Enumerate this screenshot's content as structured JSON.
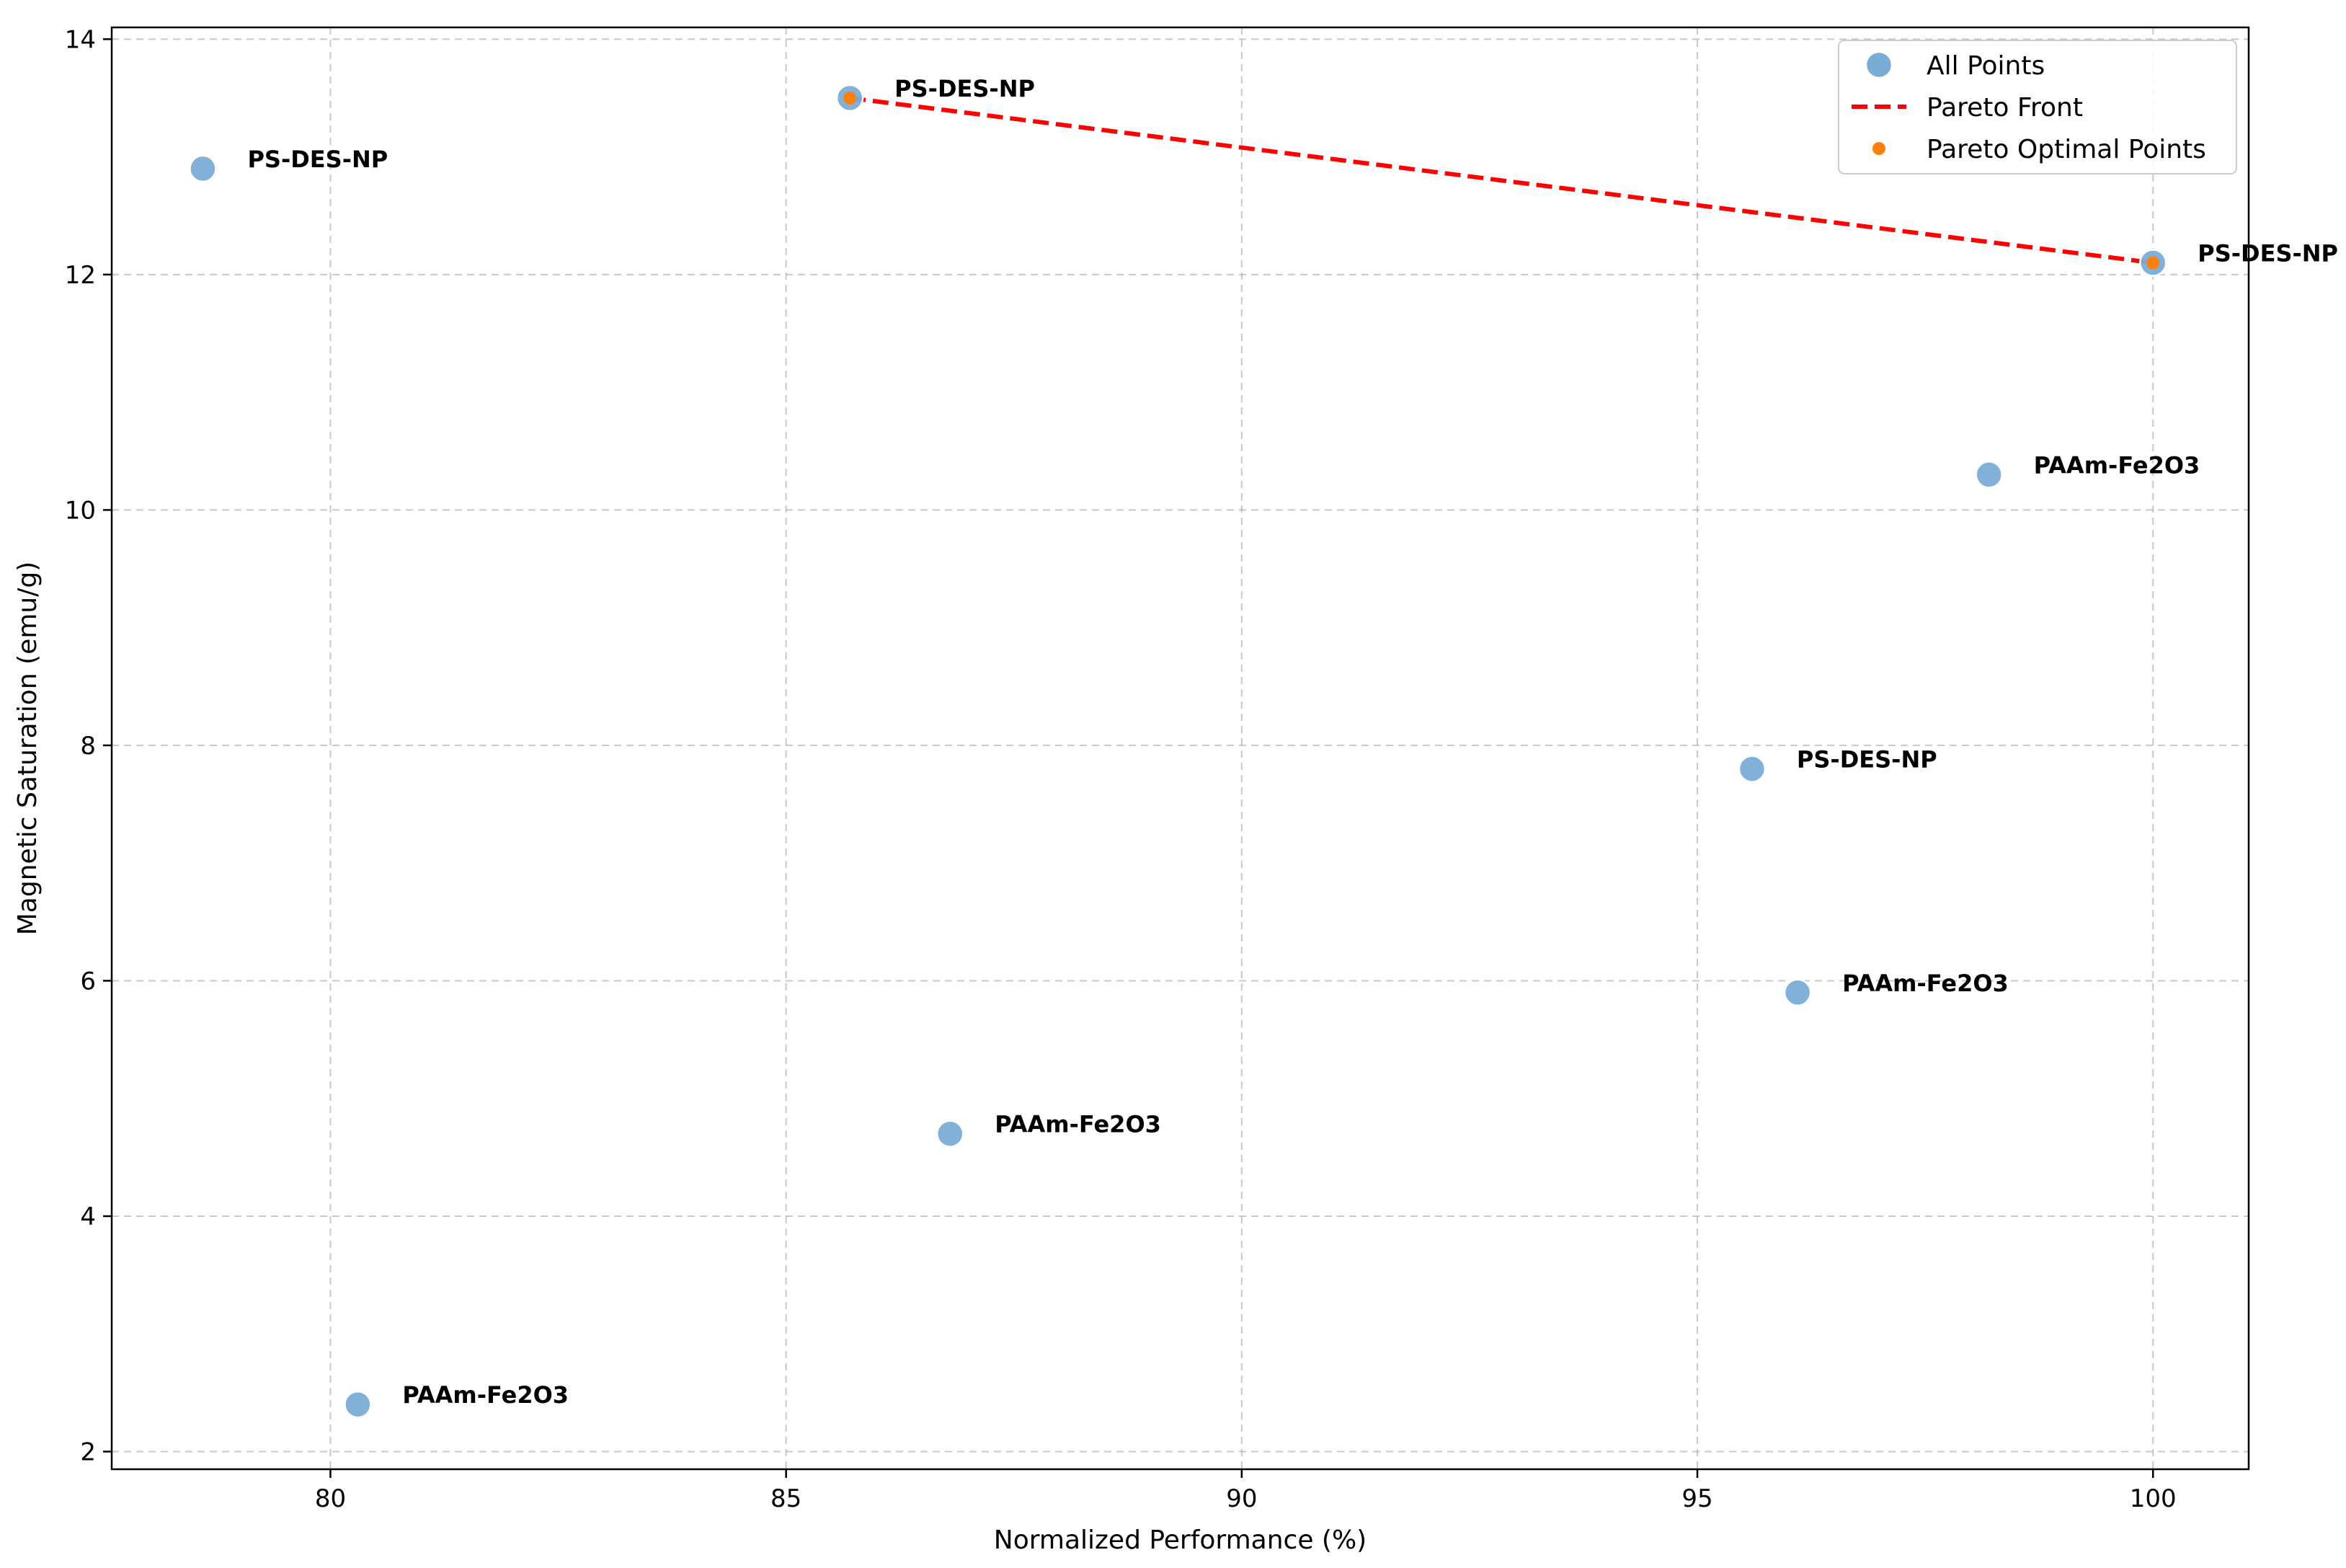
{
  "chart_data": {
    "type": "scatter",
    "xlabel": "Normalized Performance (%)",
    "ylabel": "Magnetic Saturation (emu/g)",
    "xlim": [
      77.6,
      101.05
    ],
    "ylim": [
      1.85,
      14.1
    ],
    "xticks": [
      80,
      85,
      90,
      95,
      100
    ],
    "yticks": [
      2,
      4,
      6,
      8,
      10,
      12,
      14
    ],
    "grid": true,
    "legend_position": "top-right",
    "series": [
      {
        "name": "All Points",
        "marker": "circle",
        "color": "#7aadd6",
        "points": [
          {
            "x": 78.6,
            "y": 12.9,
            "label": "PS-DES-NP"
          },
          {
            "x": 85.7,
            "y": 13.5,
            "label": "PS-DES-NP"
          },
          {
            "x": 100.0,
            "y": 12.1,
            "label": "PS-DES-NP"
          },
          {
            "x": 98.2,
            "y": 10.3,
            "label": "PAAm-Fe2O3"
          },
          {
            "x": 95.6,
            "y": 7.8,
            "label": "PS-DES-NP"
          },
          {
            "x": 96.1,
            "y": 5.9,
            "label": "PAAm-Fe2O3"
          },
          {
            "x": 86.8,
            "y": 4.7,
            "label": "PAAm-Fe2O3"
          },
          {
            "x": 80.3,
            "y": 2.4,
            "label": "PAAm-Fe2O3"
          }
        ]
      },
      {
        "name": "Pareto Front",
        "type": "line",
        "style": "dashed",
        "color": "#ff0000",
        "points": [
          {
            "x": 85.7,
            "y": 13.5
          },
          {
            "x": 100.0,
            "y": 12.1
          }
        ]
      },
      {
        "name": "Pareto Optimal Points",
        "marker": "circle",
        "color": "#ff7f0e",
        "points": [
          {
            "x": 85.7,
            "y": 13.5
          },
          {
            "x": 100.0,
            "y": 12.1
          }
        ]
      }
    ]
  }
}
